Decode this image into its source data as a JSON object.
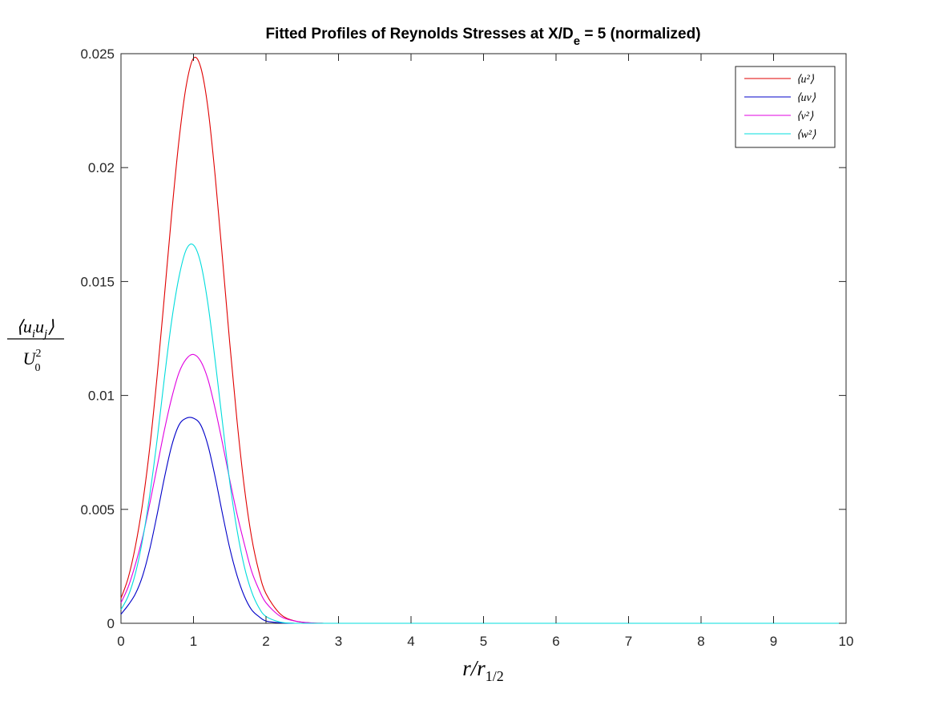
{
  "chart_data": {
    "type": "line",
    "title": {
      "prefix": "Fitted Profiles of Reynolds Stresses at X/D",
      "subscript": "e",
      "suffix": " = 5 (normalized)"
    },
    "xlabel": "r/r",
    "xlabel_sub": "1/2",
    "ylabel": {
      "numerator": "⟨u",
      "numerator_sub_i": "i",
      "numerator_mid": "u",
      "numerator_sub_j": "j",
      "numerator_end": "⟩",
      "denominator": "U",
      "denominator_sup": "2",
      "denominator_sub": "0"
    },
    "xlim": [
      0,
      10
    ],
    "ylim": [
      0,
      0.025
    ],
    "x_ticks": [
      "0",
      "1",
      "2",
      "3",
      "4",
      "5",
      "6",
      "7",
      "8",
      "9",
      "10"
    ],
    "y_ticks": [
      "0",
      "0.005",
      "0.01",
      "0.015",
      "0.02",
      "0.025"
    ],
    "grid": false,
    "legend_position": "top-right",
    "x": [
      0,
      0.1,
      0.2,
      0.3,
      0.4,
      0.5,
      0.6,
      0.7,
      0.8,
      0.9,
      1.0,
      1.1,
      1.2,
      1.3,
      1.4,
      1.5,
      1.6,
      1.7,
      1.8,
      1.9,
      2.0,
      2.2,
      2.4,
      2.6,
      2.8,
      3.0,
      3.5,
      4,
      5,
      6,
      7,
      8,
      9,
      10
    ],
    "series": [
      {
        "name": "⟨u²⟩",
        "color": "#e00000",
        "values": [
          0.0011,
          0.002,
          0.0034,
          0.0053,
          0.0078,
          0.0109,
          0.0144,
          0.018,
          0.0212,
          0.0236,
          0.0248,
          0.0244,
          0.0226,
          0.0196,
          0.016,
          0.0123,
          0.0089,
          0.006,
          0.0038,
          0.0023,
          0.0013,
          0.0004,
          0.0001,
          2e-05,
          0,
          0,
          0,
          0,
          0,
          0,
          0,
          0,
          0,
          0
        ]
      },
      {
        "name": "⟨uv⟩",
        "color": "#0000c8",
        "values": [
          0.0004,
          0.0008,
          0.0013,
          0.0021,
          0.0033,
          0.0048,
          0.0064,
          0.0078,
          0.0087,
          0.009,
          0.009,
          0.0087,
          0.0078,
          0.0064,
          0.0048,
          0.0033,
          0.0021,
          0.0012,
          0.0006,
          0.0003,
          0.0001,
          2e-05,
          0,
          0,
          0,
          0,
          0,
          0,
          0,
          0,
          0,
          0,
          0,
          0
        ]
      },
      {
        "name": "⟨v²⟩",
        "color": "#e000e0",
        "values": [
          0.0009,
          0.0016,
          0.0026,
          0.0038,
          0.0053,
          0.0069,
          0.0085,
          0.0099,
          0.011,
          0.0116,
          0.0118,
          0.0115,
          0.0107,
          0.0094,
          0.0079,
          0.0063,
          0.0048,
          0.0035,
          0.0023,
          0.0015,
          0.0009,
          0.0003,
          0.0001,
          2e-05,
          0,
          0,
          0,
          0,
          0,
          0,
          0,
          0,
          0,
          0
        ]
      },
      {
        "name": "⟨w²⟩",
        "color": "#00dcdc",
        "values": [
          0.0006,
          0.0012,
          0.0022,
          0.0037,
          0.0057,
          0.0081,
          0.0108,
          0.0133,
          0.0152,
          0.0164,
          0.0166,
          0.0158,
          0.014,
          0.0115,
          0.0088,
          0.0062,
          0.0041,
          0.0025,
          0.0014,
          0.0007,
          0.0003,
          5e-05,
          0,
          0,
          0,
          0,
          0,
          0,
          0,
          0,
          0,
          0,
          0,
          0
        ]
      }
    ]
  }
}
